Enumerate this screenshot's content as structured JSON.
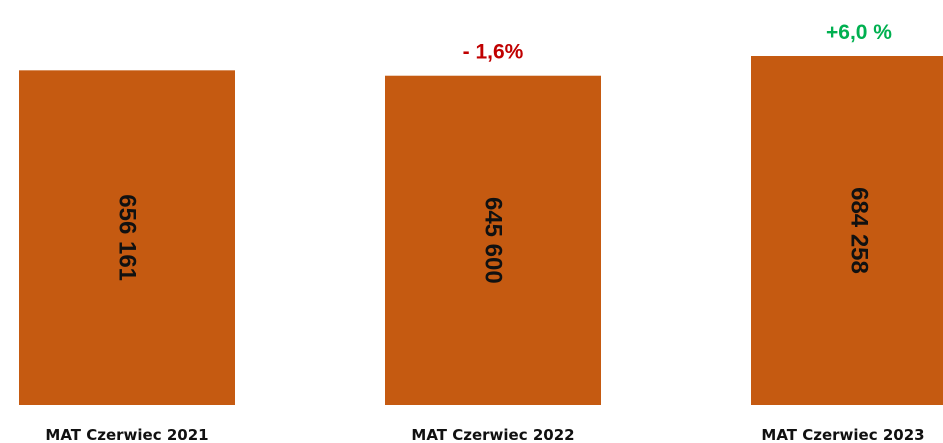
{
  "chart_data": {
    "type": "bar",
    "categories": [
      "MAT Czerwiec 2021",
      "MAT Czerwiec 2022",
      "MAT Czerwiec 2023"
    ],
    "values": [
      656161,
      645600,
      684258
    ],
    "value_labels": [
      "656 161",
      "645 600",
      "684 258"
    ],
    "change_labels": [
      "",
      "- 1,6%",
      "+6,0 %"
    ],
    "change_colors": [
      "",
      "#c00000",
      "#00b050"
    ],
    "bar_color": "#c55a11",
    "grid": false,
    "legend": "none"
  }
}
